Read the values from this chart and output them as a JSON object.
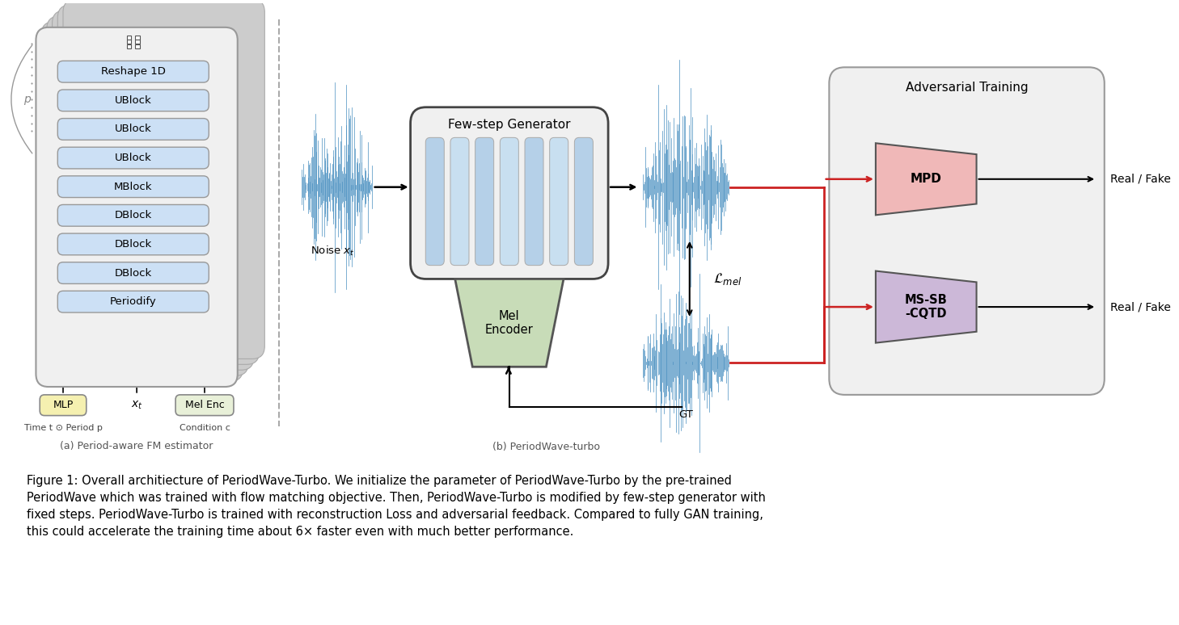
{
  "bg_color": "#ffffff",
  "caption": "Figure 1: Overall architiecture of PeriodWave-Turbo. We initialize the parameter of PeriodWave-Turbo by the pre-trained\nPeriodWave which was trained with flow matching objective. Then, PeriodWave-Turbo is modified by few-step generator with\nfixed steps. PeriodWave-Turbo is trained with reconstruction Loss and adversarial feedback. Compared to fully GAN training,\nthis could accelerate the training time about 6× faster even with much better performance.",
  "subtitle_a": "(a) Period-aware FM estimator",
  "subtitle_b": "(b) PeriodWave-turbo",
  "left_blocks": [
    "Reshape 1D",
    "UBlock",
    "UBlock",
    "UBlock",
    "MBlock",
    "DBlock",
    "DBlock",
    "DBlock",
    "Periodify"
  ],
  "block_color_blue": "#cce0f5",
  "block_color_yellow": "#f5f0b0",
  "block_color_green": "#d4e8d0",
  "wave_color": "#4a8fc0",
  "red_line": "#cc2222",
  "mpd_color": "#f0b8b8",
  "cqtd_color": "#ccb8d8",
  "stack_color": "#d8d8d8",
  "gen_box_color": "#f0f0f0",
  "adv_box_color": "#f0f0f0"
}
